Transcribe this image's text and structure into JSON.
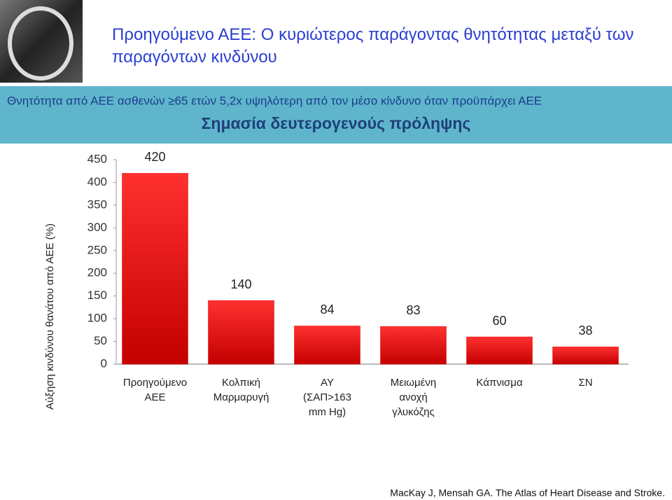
{
  "slide": {
    "title": "Προηγούμενο ΑΕΕ: Ο κυριώτερος παράγοντας θνητότητας μεταξύ των παραγόντων κινδύνου",
    "banner_text": "Θνητότητα από ΑΕΕ ασθενών ≥65 ετών 5,2x υψηλότερη από τον μέσο κίνδυνο όταν προϋπάρχει ΑΕΕ",
    "banner_subtitle": "Σημασία δευτερογενούς πρόληψης",
    "source": "MacKay J, Mensah GA. The Atlas of Heart Disease and Stroke."
  },
  "chart_data": {
    "type": "bar",
    "ylabel": "Αύξηση κινδύνου θανάτου από ΑΕΕ (%)",
    "categories": [
      "Προηγούμενο\nΑΕΕ",
      "Κολπική\nΜαρμαρυγή",
      "ΑΥ\n(ΣΑΠ>163\nmm Hg)",
      "Μειωμένη\nανοχή\nγλυκόζης",
      "Κάπνισμα",
      "ΣΝ"
    ],
    "values": [
      420,
      140,
      84,
      83,
      60,
      38
    ],
    "color": "#e60000",
    "ylim": [
      0,
      450
    ],
    "yticks": [
      0,
      50,
      100,
      150,
      200,
      250,
      300,
      350,
      400,
      450
    ]
  }
}
